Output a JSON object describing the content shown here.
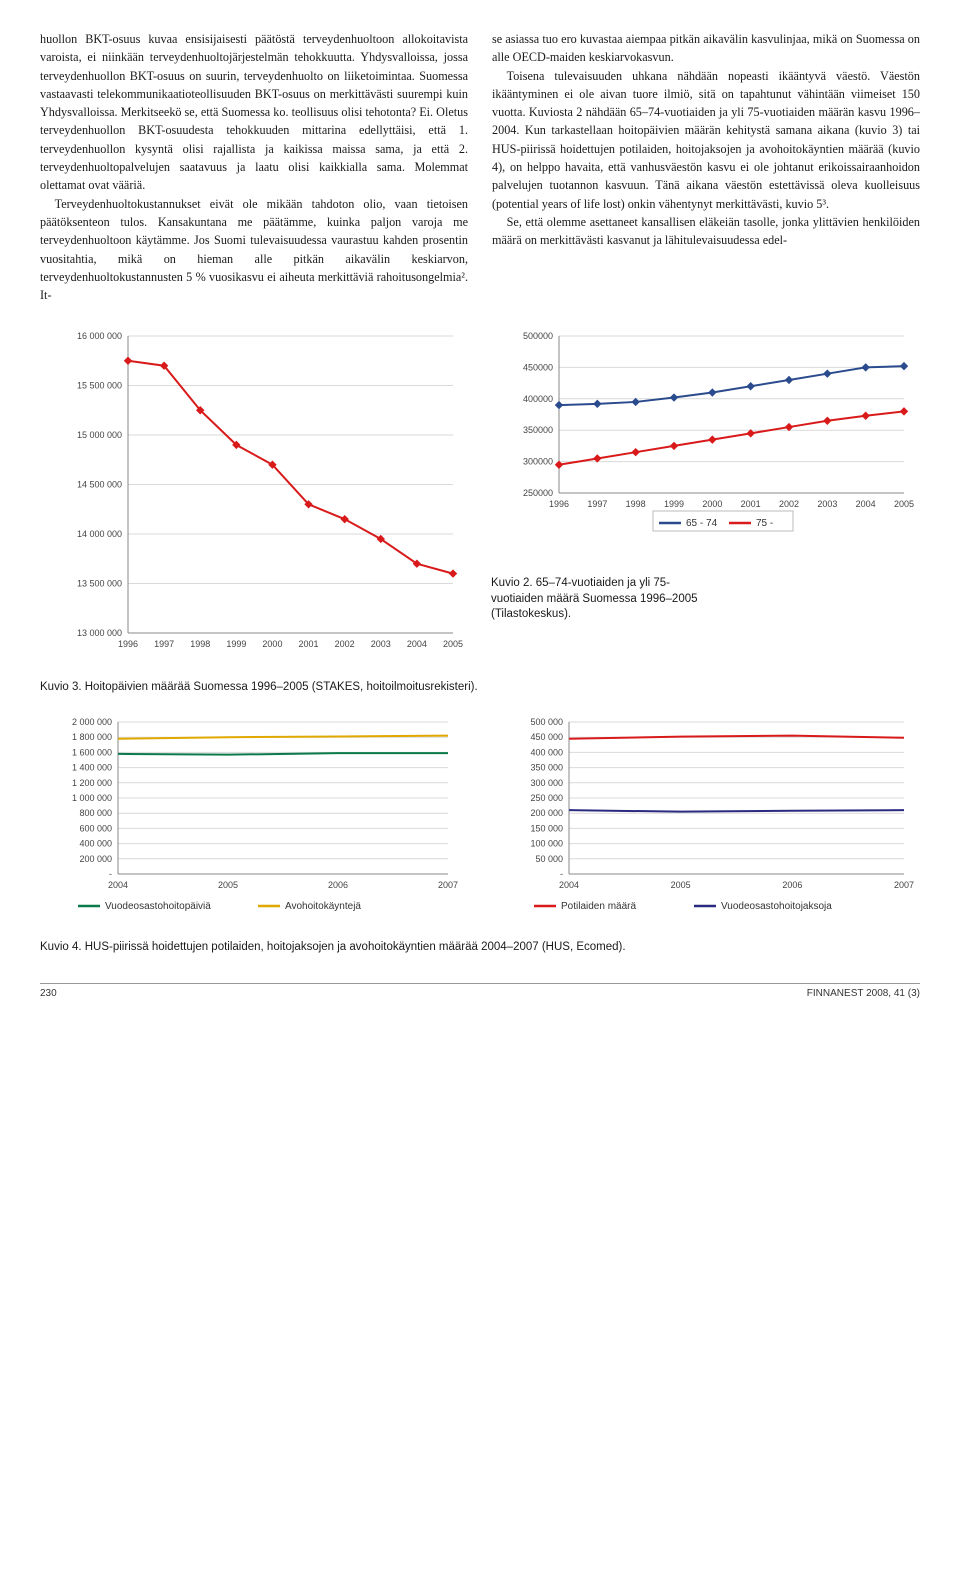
{
  "text": {
    "col1_p1": "huollon BKT-osuus kuvaa ensisijaisesti päätöstä terveydenhuoltoon allokoitavista varoista, ei niinkään terveydenhuoltojärjestelmän tehokkuutta. Yhdysvalloissa, jossa terveydenhuollon BKT-osuus on suurin, terveydenhuolto on liiketoimintaa. Suomessa vastaavasti telekommunikaatioteollisuuden BKT-osuus on merkittävästi suurempi kuin Yhdysvalloissa. Merkitseekö se, että Suomessa ko. teollisuus olisi tehotonta? Ei. Oletus terveydenhuollon BKT-osuudesta tehokkuuden mittarina edellyttäisi, että 1. terveydenhuollon kysyntä olisi rajallista ja kaikissa maissa sama, ja että 2. terveydenhuoltopalvelujen saatavuus ja laatu olisi kaikkialla sama. Molemmat olettamat ovat vääriä.",
    "col1_p2": "Terveydenhuoltokustannukset eivät ole mikään tahdoton olio, vaan tietoisen päätöksenteon tulos. Kansakuntana me päätämme, kuinka paljon varoja me terveydenhuoltoon käytämme. Jos Suomi tulevaisuudessa vaurastuu kahden prosentin vuositahtia, mikä on hieman alle pitkän aikavälin keskiarvon, terveydenhuoltokustannusten 5 % vuosikasvu ei aiheuta merkittäviä rahoitusongelmia². It-",
    "col2_p1": "se asiassa tuo ero kuvastaa aiempaa pitkän aikavälin kasvulinjaa, mikä on Suomessa on alle OECD-maiden keskiarvokasvun.",
    "col2_p2": "Toisena tulevaisuuden uhkana nähdään nopeasti ikääntyvä väestö. Väestön ikääntyminen ei ole aivan tuore ilmiö, sitä on tapahtunut vähintään viimeiset 150 vuotta. Kuviosta 2 nähdään 65–74-vuotiaiden ja yli 75-vuotiaiden määrän kasvu 1996–2004. Kun tarkastellaan hoitopäivien määrän kehitystä samana aikana (kuvio 3) tai HUS-piirissä hoidettujen potilaiden, hoitojaksojen ja avohoitokäyntien määrää (kuvio 4), on helppo havaita, että vanhusväestön kasvu ei ole johtanut erikoissairaanhoidon palvelujen tuotannon kasvuun. Tänä aikana väestön estettävissä oleva kuolleisuus (potential years of life lost) onkin vähentynyt merkittävästi, kuvio 5³.",
    "col2_p3": "Se, että olemme asettaneet kansallisen eläkeiän tasolle, jonka ylittävien henkilöiden määrä on merkittävästi kasvanut ja lähitulevaisuudessa edel-"
  },
  "chart2": {
    "type": "line",
    "x": [
      1996,
      1997,
      1998,
      1999,
      2000,
      2001,
      2002,
      2003,
      2004,
      2005
    ],
    "series": {
      "s6574": {
        "label": "65 - 74",
        "color": "#2a4b8d",
        "values": [
          390000,
          392000,
          395000,
          402000,
          410000,
          420000,
          430000,
          440000,
          450000,
          452000
        ]
      },
      "s75": {
        "label": "75 -",
        "color": "#d91a1a",
        "values": [
          295000,
          305000,
          315000,
          325000,
          335000,
          345000,
          355000,
          365000,
          373000,
          380000
        ]
      }
    },
    "ylim": [
      250000,
      500000
    ],
    "ytick_step": 50000,
    "grid_color": "#d9d9d9",
    "bg": "#ffffff",
    "marker": "diamond"
  },
  "chart3": {
    "type": "line",
    "x": [
      1996,
      1997,
      1998,
      1999,
      2000,
      2001,
      2002,
      2003,
      2004,
      2005
    ],
    "series": {
      "main": {
        "color": "#d91a1a",
        "values": [
          15750000,
          15700000,
          15250000,
          14900000,
          14700000,
          14300000,
          14150000,
          13950000,
          13700000,
          13600000
        ]
      }
    },
    "ylim": [
      13000000,
      16000000
    ],
    "ytick_step": 500000,
    "ytick_format": "space",
    "grid_color": "#d9d9d9",
    "bg": "#ffffff",
    "marker": "diamond"
  },
  "chart4a": {
    "type": "line",
    "x": [
      2004,
      2005,
      2006,
      2007
    ],
    "series": {
      "vuode": {
        "label": "Vuodeosastohoitopäiviä",
        "color": "#0b7a4b",
        "values": [
          1580000,
          1570000,
          1590000,
          1590000
        ]
      },
      "avo": {
        "label": "Avohoitokäyntejä",
        "color": "#e0a800",
        "values": [
          1780000,
          1800000,
          1810000,
          1820000
        ]
      }
    },
    "ylim": [
      0,
      2000000
    ],
    "ytick_step": 200000,
    "ytick_format": "space",
    "grid_color": "#d9d9d9",
    "bg": "#ffffff"
  },
  "chart4b": {
    "type": "line",
    "x": [
      2004,
      2005,
      2006,
      2007
    ],
    "series": {
      "pot": {
        "label": "Potilaiden määrä",
        "color": "#d91a1a",
        "values": [
          445000,
          452000,
          455000,
          448000
        ]
      },
      "jak": {
        "label": "Vuodeosastohoitojaksoja",
        "color": "#2a2a80",
        "values": [
          210000,
          205000,
          208000,
          210000
        ]
      }
    },
    "ylim": [
      0,
      500000
    ],
    "ytick_step": 50000,
    "ytick_format": "space",
    "grid_color": "#d9d9d9",
    "bg": "#ffffff"
  },
  "captions": {
    "kuvio2": "Kuvio 2. 65–74-vuotiaiden ja yli 75-vuotiaiden määrä Suomessa 1996–2005 (Tilastokeskus).",
    "kuvio3": "Kuvio 3. Hoitopäivien määrää Suomessa 1996–2005 (STAKES, hoitoilmoitusrekisteri).",
    "kuvio4": "Kuvio 4. HUS-piirissä hoidettujen potilaiden, hoitojaksojen ja avohoitokäyntien määrää 2004–2007 (HUS, Ecomed)."
  },
  "footer": {
    "page": "230",
    "journal": "FINNANEST 2008, 41 (3)"
  }
}
